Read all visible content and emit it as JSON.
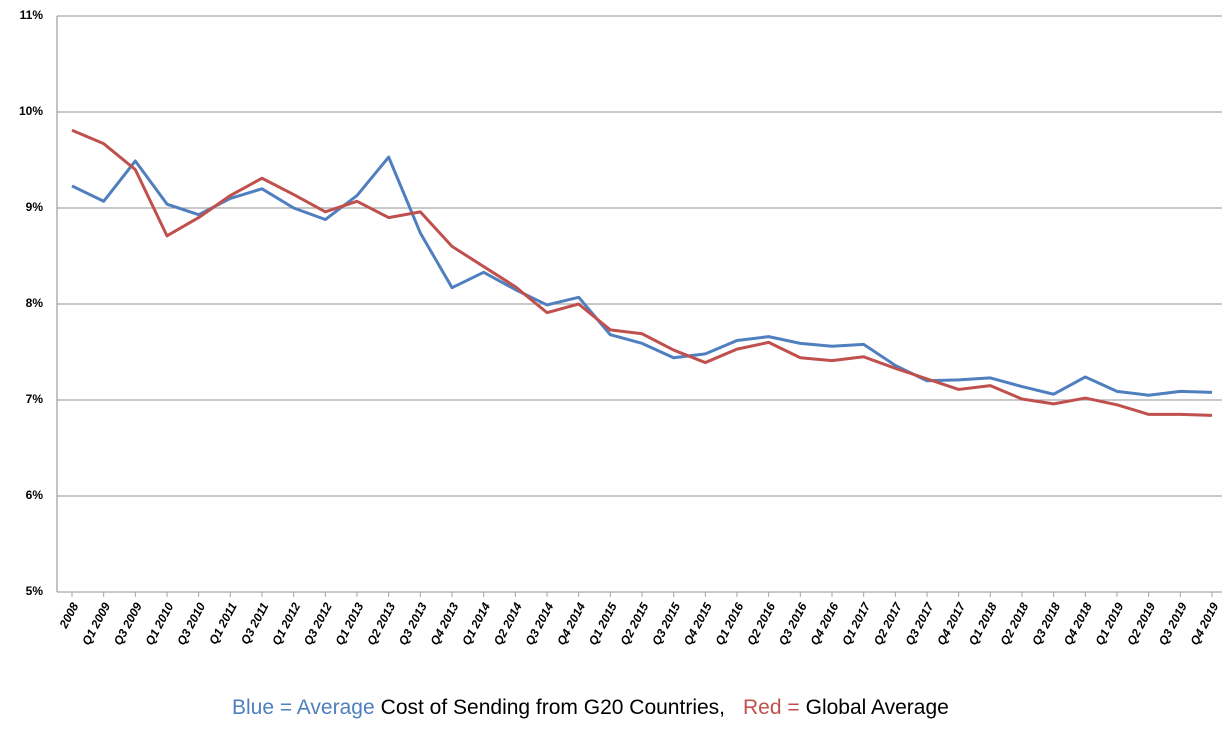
{
  "chart_data": {
    "type": "line",
    "categories": [
      "2008",
      "Q1 2009",
      "Q3 2009",
      "Q1 2010",
      "Q3 2010",
      "Q1 2011",
      "Q3 2011",
      "Q1 2012",
      "Q3 2012",
      "Q1 2013",
      "Q2 2013",
      "Q3 2013",
      "Q4 2013",
      "Q1 2014",
      "Q2 2014",
      "Q3 2014",
      "Q4 2014",
      "Q1 2015",
      "Q2 2015",
      "Q3 2015",
      "Q4 2015",
      "Q1 2016",
      "Q2 2016",
      "Q3 2016",
      "Q4 2016",
      "Q1 2017",
      "Q2 2017",
      "Q3 2017",
      "Q4 2017",
      "Q1 2018",
      "Q2 2018",
      "Q3 2018",
      "Q4 2018",
      "Q1 2019",
      "Q2 2019",
      "Q3 2019",
      "Q4 2019"
    ],
    "series": [
      {
        "color": "#4f7fbf",
        "values": [
          9.23,
          9.07,
          9.49,
          9.04,
          8.93,
          9.1,
          9.2,
          9.0,
          8.88,
          9.13,
          9.53,
          8.74,
          8.17,
          8.33,
          8.15,
          7.99,
          8.07,
          7.68,
          7.59,
          7.44,
          7.48,
          7.62,
          7.66,
          7.59,
          7.56,
          7.58,
          7.36,
          7.2,
          7.21,
          7.23,
          7.14,
          7.06,
          7.24,
          7.09,
          7.05,
          7.09,
          7.08
        ]
      },
      {
        "color": "#c0504d",
        "values": [
          9.81,
          9.67,
          9.4,
          8.71,
          8.9,
          9.13,
          9.31,
          9.14,
          8.96,
          9.07,
          8.9,
          8.96,
          8.6,
          8.39,
          8.18,
          7.91,
          8.0,
          7.73,
          7.69,
          7.52,
          7.39,
          7.53,
          7.6,
          7.44,
          7.41,
          7.45,
          7.33,
          7.22,
          7.11,
          7.15,
          7.01,
          6.96,
          7.02,
          6.95,
          6.85,
          6.85,
          6.84
        ]
      }
    ],
    "ylim": [
      5,
      11
    ],
    "yticks": [
      {
        "value": 5,
        "label": "5%"
      },
      {
        "value": 6,
        "label": "6%"
      },
      {
        "value": 7,
        "label": "7%"
      },
      {
        "value": 8,
        "label": "8%"
      },
      {
        "value": 9,
        "label": "9%"
      },
      {
        "value": 10,
        "label": "10%"
      },
      {
        "value": 11,
        "label": "11%"
      }
    ],
    "grid": true,
    "caption": [
      {
        "text": "Blue = Average",
        "color": "#4f7fbf"
      },
      {
        "text": "Cost of Sending from G20 Countries,",
        "color": "#000000"
      },
      {
        "text": "Red =",
        "color": "#c0504d"
      },
      {
        "text": "Global Average",
        "color": "#000000"
      }
    ]
  }
}
